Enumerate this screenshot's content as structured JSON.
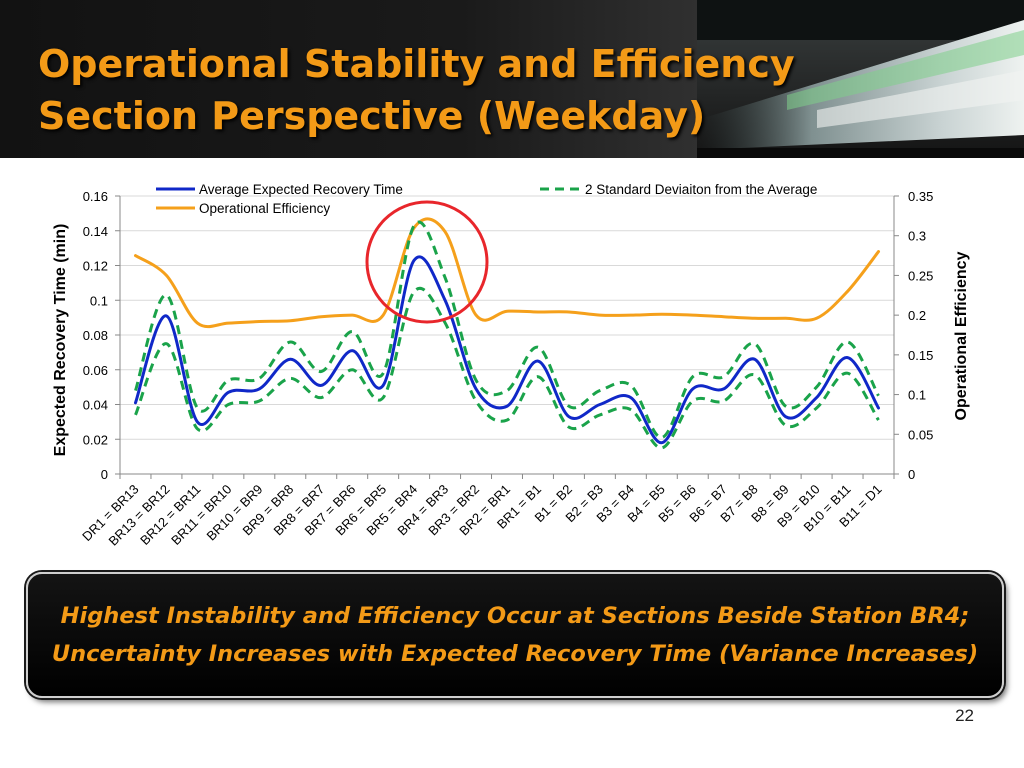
{
  "slide": {
    "title_line1": "Operational Stability and Efficiency",
    "title_line2": "Section Perspective (Weekday)",
    "callout_line1": "Highest Instability and Efficiency Occur at Sections Beside Station BR4;",
    "callout_line2": "Uncertainty Increases with Expected Recovery Time (Variance Increases)",
    "page_number": "22",
    "colors": {
      "title": "#f39a17",
      "callout_text": "#f39a17",
      "highlight_circle": "#e8262b"
    }
  },
  "chart_data": {
    "type": "line",
    "categories": [
      "DR1 = BR13",
      "BR13 = BR12",
      "BR12 = BR11",
      "BR11 = BR10",
      "BR10 = BR9",
      "BR9 = BR8",
      "BR8 = BR7",
      "BR7 = BR6",
      "BR6 = BR5",
      "BR5 = BR4",
      "BR4 = BR3",
      "BR3 = BR2",
      "BR2 = BR1",
      "BR1 = B1",
      "B1 = B2",
      "B2 = B3",
      "B3 = B4",
      "B4 = B5",
      "B5 = B6",
      "B6 = B7",
      "B7 = B8",
      "B8 = B9",
      "B9 = B10",
      "B10 = B11",
      "B11 = D1"
    ],
    "ylabel_left": "Expected Recovery Time (min)",
    "ylabel_right": "Operational Efficiency",
    "ylim_left": [
      0,
      0.16
    ],
    "ylim_right": [
      0,
      0.35
    ],
    "yticks_left": [
      "0",
      "0.02",
      "0.04",
      "0.06",
      "0.08",
      "0.1",
      "0.12",
      "0.14",
      "0.16"
    ],
    "yticks_right": [
      "0",
      "0.05",
      "0.1",
      "0.15",
      "0.2",
      "0.25",
      "0.3",
      "0.35"
    ],
    "legend_position": "top",
    "series": [
      {
        "name": "Average Expected Recovery Time",
        "axis": "left",
        "color": "#1028c8",
        "style": "solid",
        "values": [
          0.041,
          0.091,
          0.03,
          0.047,
          0.049,
          0.066,
          0.051,
          0.071,
          0.051,
          0.123,
          0.1,
          0.049,
          0.039,
          0.065,
          0.033,
          0.04,
          0.044,
          0.018,
          0.049,
          0.049,
          0.066,
          0.033,
          0.044,
          0.067,
          0.038
        ]
      },
      {
        "name": "2 Standard Deviaiton from the Average",
        "axis": "left",
        "color": "#1aa34a",
        "style": "dashed",
        "values": [
          0.048,
          0.103,
          0.038,
          0.054,
          0.055,
          0.076,
          0.059,
          0.082,
          0.058,
          0.143,
          0.113,
          0.054,
          0.048,
          0.073,
          0.039,
          0.048,
          0.051,
          0.021,
          0.056,
          0.056,
          0.075,
          0.039,
          0.05,
          0.076,
          0.045
        ]
      },
      {
        "name": "",
        "axis": "left",
        "color": "#1aa34a",
        "style": "dashed",
        "values": [
          0.034,
          0.075,
          0.026,
          0.04,
          0.042,
          0.055,
          0.044,
          0.06,
          0.044,
          0.105,
          0.087,
          0.042,
          0.031,
          0.056,
          0.027,
          0.034,
          0.037,
          0.015,
          0.042,
          0.042,
          0.057,
          0.028,
          0.038,
          0.058,
          0.031
        ]
      },
      {
        "name": "Operational Efficiency",
        "axis": "right",
        "color": "#f5a01b",
        "style": "solid",
        "values": [
          0.275,
          0.25,
          0.19,
          0.19,
          0.192,
          0.193,
          0.198,
          0.2,
          0.2,
          0.31,
          0.305,
          0.2,
          0.205,
          0.204,
          0.204,
          0.2,
          0.2,
          0.201,
          0.2,
          0.198,
          0.196,
          0.196,
          0.196,
          0.23,
          0.28
        ]
      }
    ],
    "annotation": "red circle around BR5 = BR4 / BR4 = BR3 peak"
  }
}
